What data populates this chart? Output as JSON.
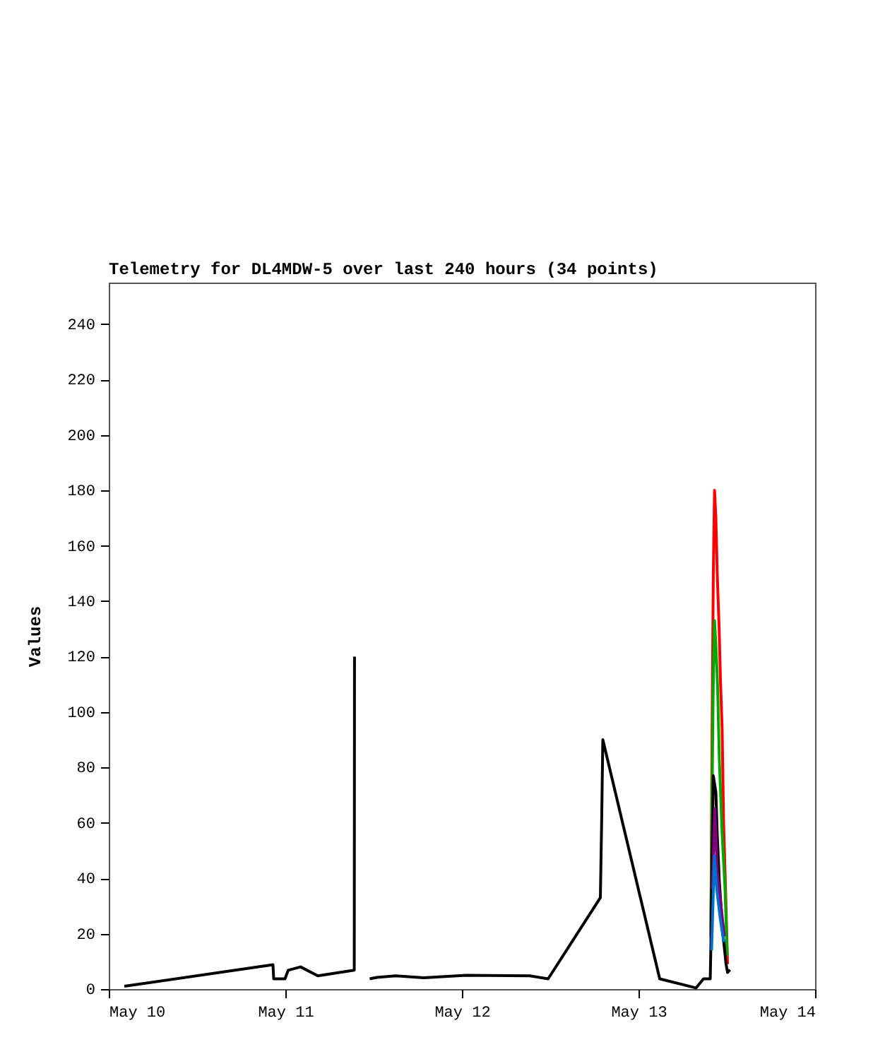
{
  "chart_data": {
    "type": "line",
    "title": "Telemetry for DL4MDW-5 over last 240 hours (34 points)",
    "ylabel": "Values",
    "xlim": [
      "--05-10",
      "--05-14"
    ],
    "xticks": [
      {
        "value": "--05-10",
        "label": "May 10"
      },
      {
        "value": "--05-11",
        "label": "May 11"
      },
      {
        "value": "--05-12",
        "label": "May 12"
      },
      {
        "value": "--05-13",
        "label": "May 13"
      },
      {
        "value": "--05-14",
        "label": "May 14"
      }
    ],
    "ylim": [
      0,
      255
    ],
    "yticks": [
      0,
      20,
      40,
      60,
      80,
      100,
      120,
      140,
      160,
      180,
      200,
      220,
      240
    ],
    "series": [
      {
        "color": "#ff0000",
        "x": [
          "--05-13T09:50",
          "--05-13T10:00",
          "--05-13T10:10",
          "--05-13T10:20",
          "--05-13T10:31",
          "--05-13T10:42",
          "--05-13T10:57",
          "--05-13T11:08",
          "--05-13T11:22",
          "--05-13T11:34",
          "--05-13T11:51",
          "--05-13T12:06"
        ],
        "values": [
          19,
          92,
          150,
          180,
          170,
          150,
          131,
          112,
          94,
          60,
          34,
          9
        ]
      },
      {
        "color": "#00aa00",
        "x": [
          "--05-13T09:50",
          "--05-13T10:02",
          "--05-13T10:10",
          "--05-13T10:20",
          "--05-13T10:31",
          "--05-13T10:45",
          "--05-13T10:59",
          "--05-13T11:22",
          "--05-13T11:46",
          "--05-13T12:03"
        ],
        "values": [
          22,
          78,
          112,
          133,
          124,
          109,
          83,
          56,
          36,
          12
        ]
      },
      {
        "color": "#000000",
        "x": [
          "--05-10T02:07",
          "--05-10T22:19",
          "--05-10T22:25",
          "--05-10T23:57",
          "--05-11T00:23",
          "--05-11T02:04",
          "--05-11T04:25",
          "--05-11T09:22",
          "--05-11T09:24",
          "--05-11T10:34",
          "--05-11T11:28",
          "--05-11T12:26",
          "--05-11T14:59",
          "--05-11T18:49",
          "--05-12T00:35",
          "--05-12T09:13",
          "--05-12T11:43",
          "--05-12T18:49",
          "--05-12T19:00",
          "--05-12T19:09",
          "--05-13T02:53",
          "--05-13T07:49",
          "--05-13T08:50",
          "--05-13T09:45",
          "--05-13T09:50",
          "--05-13T10:10",
          "--05-13T10:31",
          "--05-13T10:42",
          "--05-13T10:59",
          "--05-13T11:28",
          "--05-13T11:54",
          "--05-13T12:06",
          "--05-13T12:26"
        ],
        "values": [
          1,
          8.8,
          3.7,
          3.7,
          6.8,
          8,
          4.8,
          6.8,
          120,
          null,
          3.7,
          4.2,
          4.8,
          4.1,
          5,
          4.8,
          3.7,
          33,
          62,
          90,
          3.7,
          0.4,
          3.7,
          3.7,
          15,
          77,
          71,
          56,
          39,
          20,
          9,
          6,
          7
        ]
      },
      {
        "color": "#800080",
        "x": [
          "--05-13T10:02",
          "--05-13T10:22",
          "--05-13T10:42",
          "--05-13T11:08",
          "--05-13T11:40"
        ],
        "values": [
          36,
          65,
          42,
          32,
          19
        ]
      },
      {
        "color": "#0070d0",
        "x": [
          "--05-13T09:56",
          "--05-13T10:19",
          "--05-13T10:38",
          "--05-13T11:05",
          "--05-13T11:35"
        ],
        "values": [
          14,
          48,
          36,
          26,
          17
        ]
      }
    ]
  }
}
